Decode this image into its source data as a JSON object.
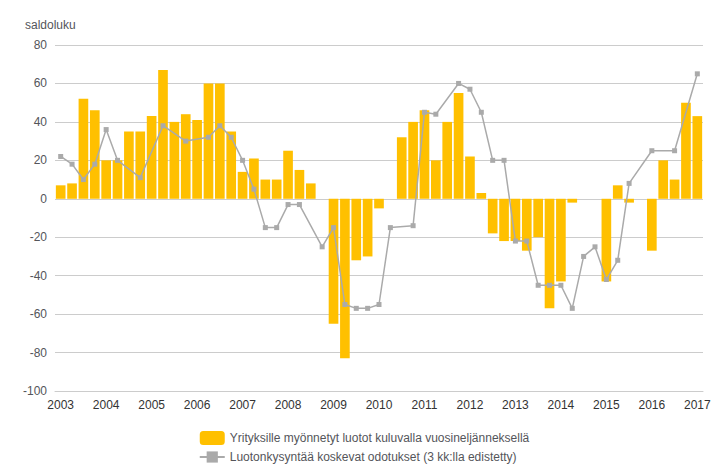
{
  "chart_data": {
    "type": "bar",
    "ylabel": "saldoluku",
    "categories": [
      "2003",
      null,
      null,
      null,
      "2004",
      null,
      null,
      null,
      "2005",
      null,
      null,
      null,
      "2006",
      null,
      null,
      null,
      "2007",
      null,
      null,
      null,
      "2008",
      null,
      null,
      null,
      "2009",
      null,
      null,
      null,
      "2010",
      null,
      null,
      null,
      "2011",
      null,
      null,
      null,
      "2012",
      null,
      null,
      null,
      "2013",
      null,
      null,
      null,
      "2014",
      null,
      null,
      null,
      "2015",
      null,
      null,
      null,
      "2016",
      null,
      null,
      null,
      "2017"
    ],
    "series": [
      {
        "name": "Yrityksille myönnetyt luotot kuluvalla vuosineljänneksellä",
        "type": "bar",
        "color": "#FFC000",
        "values": [
          7,
          8,
          52,
          46,
          20,
          20,
          35,
          35,
          43,
          67,
          40,
          44,
          41,
          60,
          60,
          35,
          14,
          21,
          10,
          10,
          25,
          15,
          8,
          0,
          -65,
          -83,
          -32,
          -30,
          -5,
          0,
          32,
          40,
          46,
          20,
          40,
          55,
          22,
          3,
          -18,
          -22,
          -22,
          -27,
          -20,
          -57,
          -43,
          -2,
          0,
          0,
          -43,
          7,
          -2,
          0,
          -27,
          20,
          10,
          50,
          43
        ]
      },
      {
        "name": "Luotonkysyntää koskevat odotukset (3 kk:lla edistetty)",
        "type": "line",
        "color": "#AAAAAA",
        "marker": "square",
        "values": [
          22,
          18,
          10,
          18,
          36,
          20,
          null,
          11,
          null,
          38,
          null,
          30,
          null,
          32,
          38,
          32,
          20,
          5,
          -15,
          -15,
          -3,
          -3,
          null,
          -25,
          -15,
          -55,
          -57,
          -57,
          -55,
          -15,
          null,
          -14,
          45,
          44,
          null,
          60,
          57,
          45,
          20,
          20,
          -22,
          -22,
          -45,
          -45,
          -45,
          -57,
          -30,
          -25,
          -42,
          -32,
          8,
          null,
          25,
          null,
          25,
          null,
          65
        ]
      }
    ],
    "ylim": [
      -100,
      80
    ],
    "yticks": [
      -100,
      -80,
      -60,
      -40,
      -20,
      0,
      20,
      40,
      60,
      80
    ],
    "grid": true,
    "legend": "bottom"
  }
}
